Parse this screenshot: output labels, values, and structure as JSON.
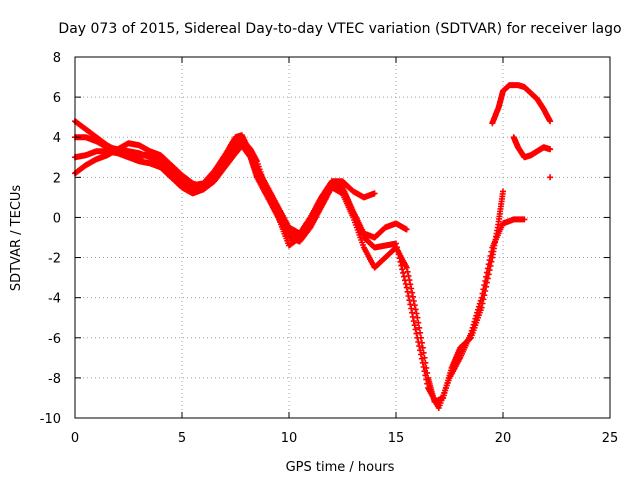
{
  "chart_data": {
    "type": "scatter",
    "title": "Day 073 of 2015, Sidereal Day-to-day VTEC variation (SDTVAR) for receiver lago",
    "xlabel": "GPS time / hours",
    "ylabel": "SDTVAR / TECUs",
    "xlim": [
      0,
      25
    ],
    "ylim": [
      -10,
      8
    ],
    "x_ticks": [
      0,
      5,
      10,
      15,
      20,
      25
    ],
    "y_ticks": [
      -10,
      -8,
      -6,
      -4,
      -2,
      0,
      2,
      4,
      6,
      8
    ],
    "grid": true,
    "legend": "none",
    "marker": "plus",
    "color": "#ff0000",
    "series": [
      {
        "x": [
          0.0,
          0.5,
          1.0,
          1.5,
          2.0,
          2.5,
          3.0,
          3.5,
          4.0,
          4.5,
          5.0,
          5.5,
          6.0,
          6.5,
          7.0,
          7.5,
          7.8,
          8.2,
          8.5,
          9.0,
          9.5,
          10.0,
          10.5,
          11.0,
          11.5,
          12.0,
          12.5,
          13.0,
          13.5,
          14.0,
          14.5,
          15.0,
          15.5,
          16.0,
          16.5,
          16.8,
          17.2,
          17.6,
          18.0,
          18.5,
          19.0,
          19.5,
          19.8,
          20.0
        ],
        "y": [
          3.0,
          3.1,
          3.3,
          3.3,
          3.2,
          3.0,
          2.8,
          2.7,
          2.5,
          2.0,
          1.5,
          1.2,
          1.4,
          1.8,
          2.5,
          3.2,
          3.6,
          3.0,
          2.0,
          1.0,
          0.0,
          -1.0,
          -1.2,
          -0.5,
          0.5,
          1.5,
          1.2,
          0.0,
          -1.5,
          -2.5,
          -2.0,
          -1.5,
          -2.5,
          -5.0,
          -8.0,
          -9.2,
          -9.0,
          -7.5,
          -6.5,
          -6.0,
          -4.5,
          -2.0,
          -0.2,
          1.3
        ]
      },
      {
        "x": [
          0.0,
          0.5,
          1.0,
          1.5,
          2.0,
          2.5,
          3.0,
          3.5,
          4.0,
          4.5,
          5.0,
          5.5,
          6.0,
          6.5,
          7.0,
          7.5,
          7.8,
          8.2,
          8.5,
          9.0,
          9.5,
          10.0,
          10.5,
          11.0,
          11.5,
          12.0,
          12.5,
          13.0,
          13.5,
          14.0
        ],
        "y": [
          4.8,
          4.4,
          4.0,
          3.6,
          3.3,
          3.1,
          3.0,
          3.2,
          3.0,
          2.5,
          2.0,
          1.6,
          1.7,
          2.3,
          3.1,
          4.0,
          4.1,
          3.2,
          2.5,
          1.5,
          0.5,
          -0.5,
          -0.8,
          0.0,
          1.0,
          1.8,
          1.8,
          1.3,
          1.0,
          1.2
        ]
      },
      {
        "x": [
          0.0,
          0.5,
          1.0,
          1.5,
          2.0,
          2.5,
          3.0,
          3.5,
          4.0,
          4.5,
          5.0,
          5.5,
          6.0,
          6.5,
          7.0,
          7.5,
          7.8,
          8.2,
          8.5,
          9.0,
          9.5,
          10.0,
          10.5,
          11.0,
          11.5,
          12.0,
          12.5,
          13.0,
          13.5,
          14.0,
          14.5,
          15.0,
          15.5
        ],
        "y": [
          2.2,
          2.6,
          2.9,
          3.1,
          3.4,
          3.7,
          3.6,
          3.3,
          3.1,
          2.6,
          2.1,
          1.7,
          1.5,
          2.1,
          2.9,
          3.8,
          3.9,
          3.4,
          2.8,
          1.2,
          0.0,
          -1.4,
          -1.0,
          -0.3,
          0.6,
          1.6,
          1.5,
          0.3,
          -0.8,
          -1.0,
          -0.5,
          -0.3,
          -0.6
        ]
      },
      {
        "x": [
          0.0,
          0.5,
          1.0,
          1.5,
          2.0,
          2.5,
          3.0,
          3.5,
          4.0,
          4.5,
          5.0,
          5.5,
          6.0,
          6.5,
          7.0,
          7.5,
          7.8,
          8.2,
          8.5,
          9.0,
          9.5,
          10.0,
          10.5,
          11.0,
          11.5,
          12.0,
          12.5,
          13.0,
          13.5,
          14.0,
          14.5,
          15.0,
          15.5,
          16.0,
          16.5,
          17.0,
          17.5,
          18.0,
          18.5,
          19.0,
          19.5,
          20.0,
          20.5,
          21.0
        ],
        "y": [
          4.0,
          4.0,
          3.8,
          3.5,
          3.4,
          3.3,
          3.2,
          3.0,
          2.7,
          2.3,
          1.8,
          1.4,
          1.5,
          2.0,
          2.7,
          3.5,
          3.7,
          3.1,
          2.2,
          1.2,
          0.3,
          -0.8,
          -1.1,
          -0.2,
          0.8,
          1.7,
          1.5,
          0.2,
          -1.0,
          -1.5,
          -1.4,
          -1.3,
          -3.5,
          -6.0,
          -8.5,
          -9.5,
          -8.0,
          -7.0,
          -5.8,
          -4.0,
          -1.5,
          -0.3,
          -0.1,
          -0.1
        ]
      },
      {
        "x": [
          19.5,
          19.8,
          20.0,
          20.3,
          20.7,
          21.0,
          21.3,
          21.6,
          21.9,
          22.2
        ],
        "y": [
          4.7,
          5.5,
          6.3,
          6.6,
          6.6,
          6.5,
          6.2,
          5.9,
          5.4,
          4.8
        ]
      },
      {
        "x": [
          20.5,
          20.7,
          21.0,
          21.3,
          21.6,
          21.9,
          22.2
        ],
        "y": [
          4.0,
          3.5,
          3.0,
          3.1,
          3.3,
          3.5,
          3.4
        ]
      },
      {
        "x": [
          22.2
        ],
        "y": [
          2.0
        ]
      }
    ]
  }
}
